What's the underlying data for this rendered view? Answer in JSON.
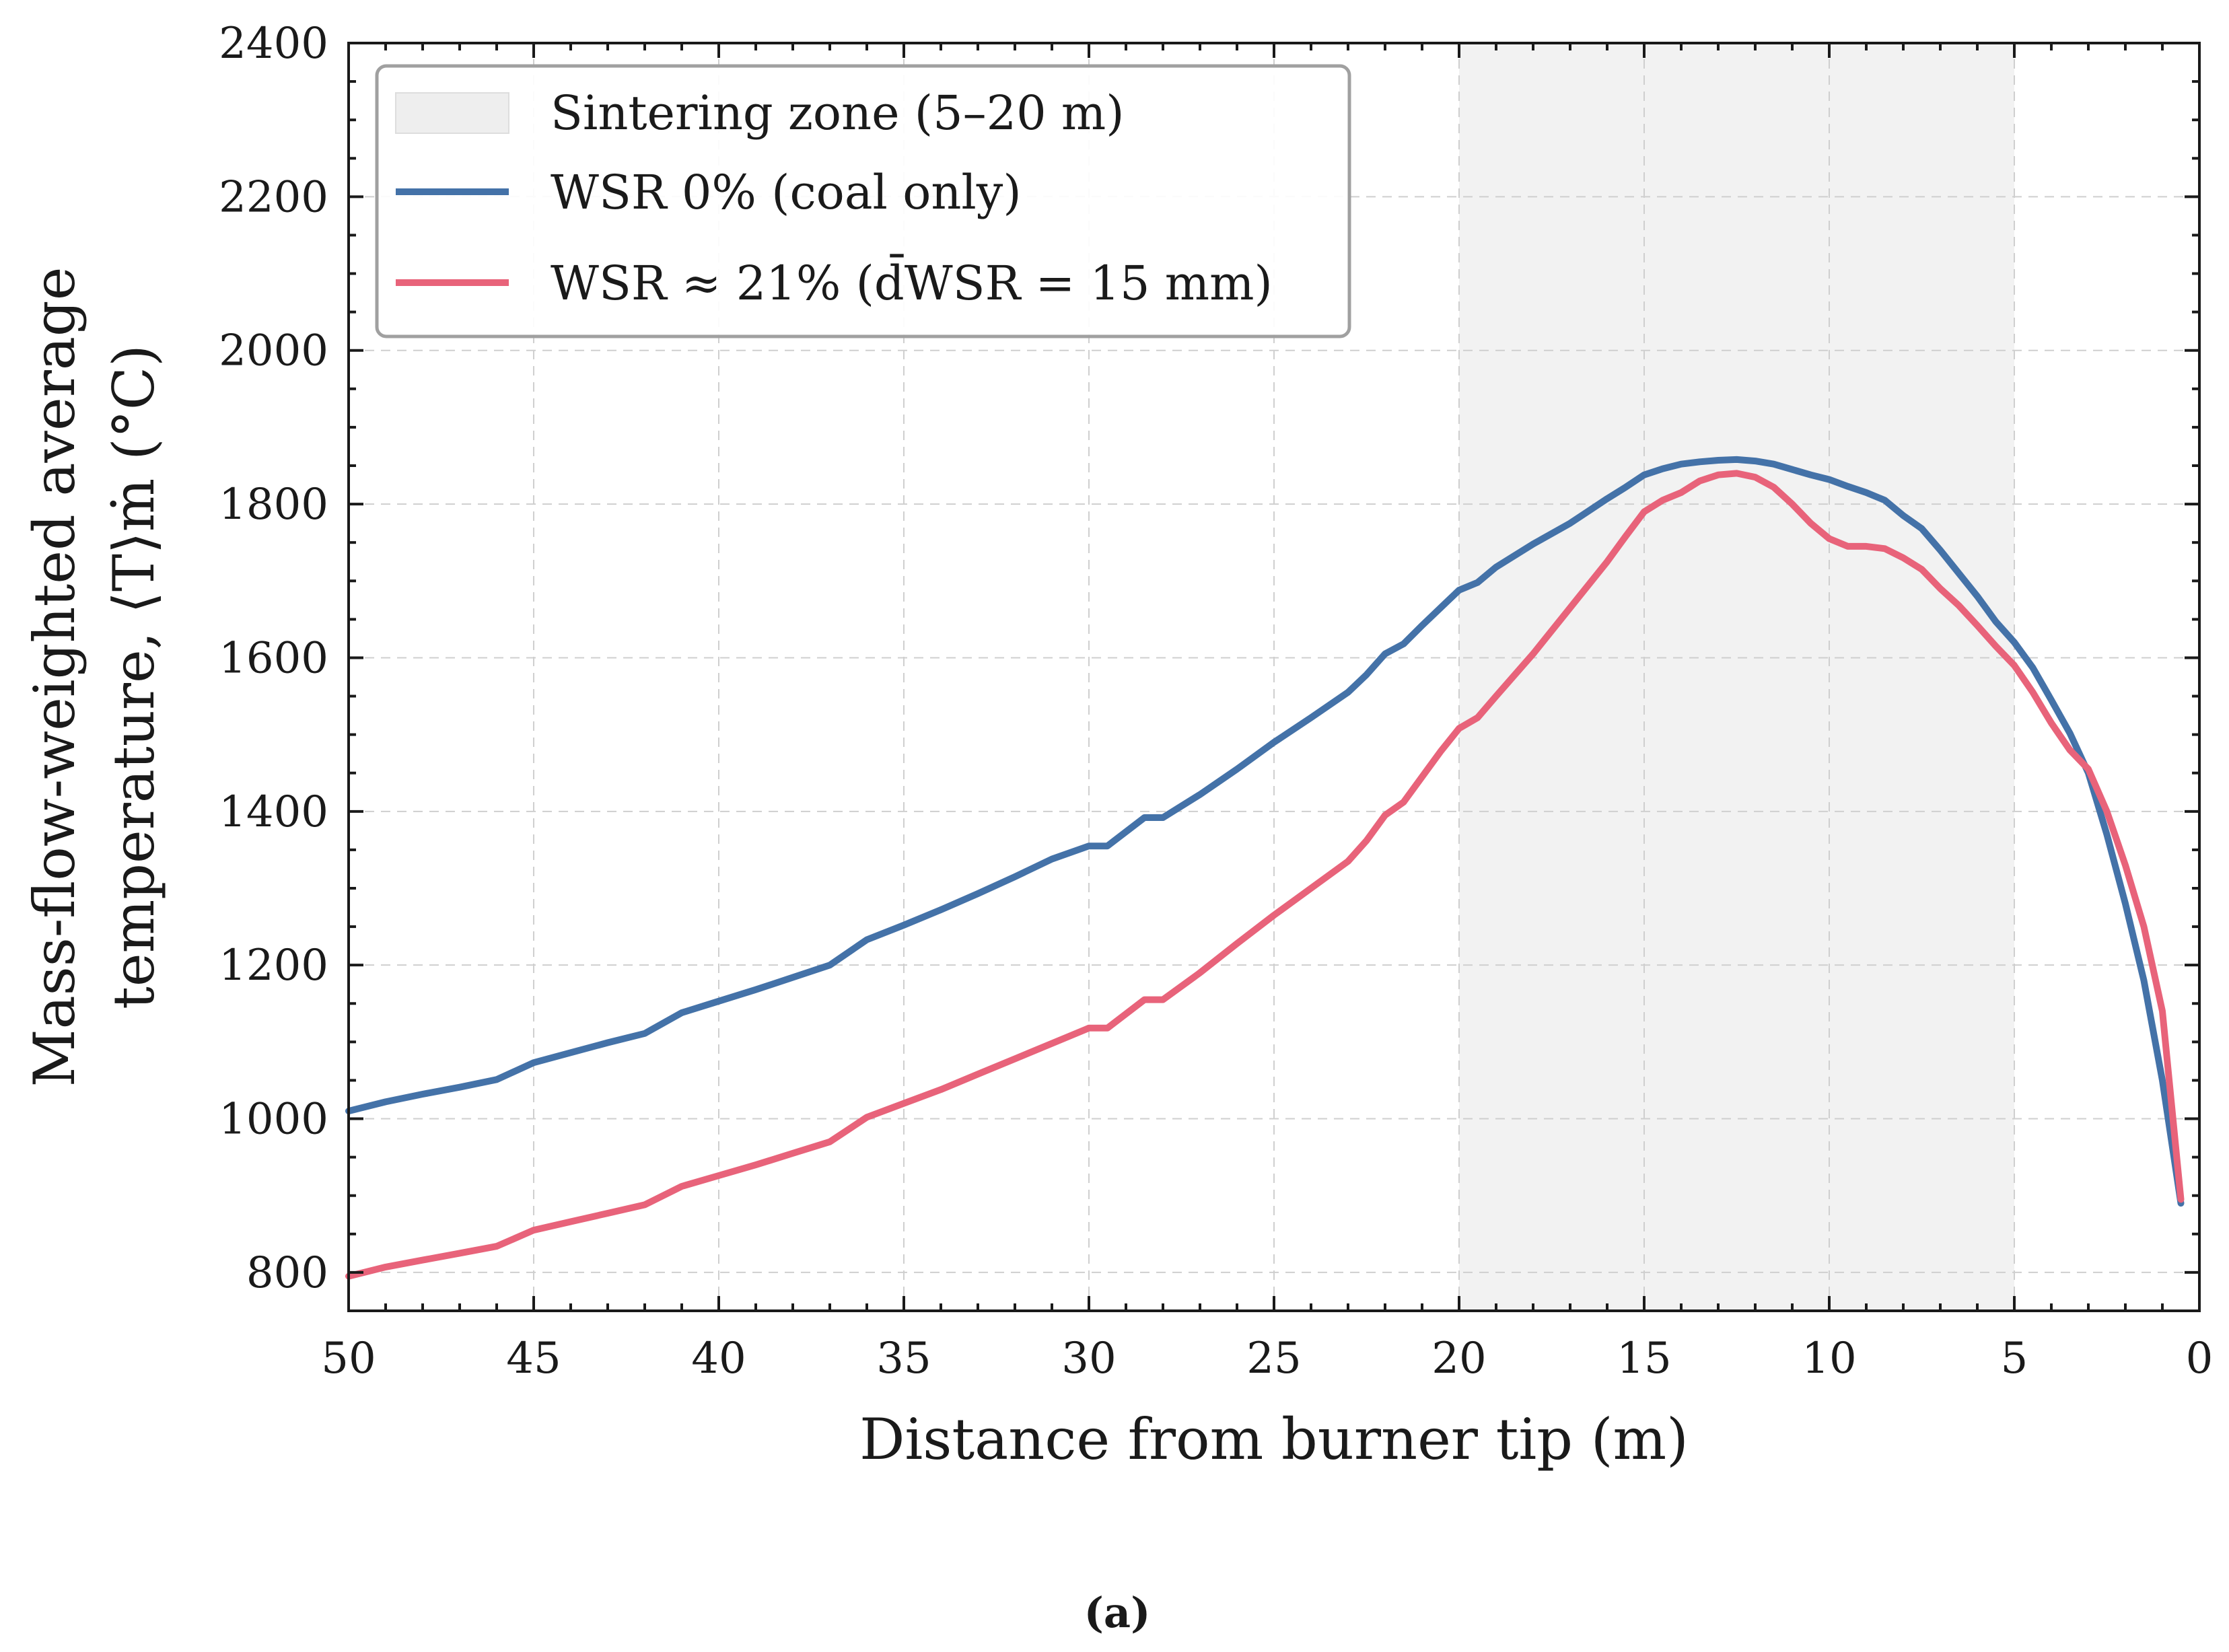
{
  "chart_data": {
    "type": "line",
    "xlabel": "Distance from burner tip (m)",
    "ylabel_line1": "Mass-flow-weighted average",
    "ylabel_line2": "temperature, ⟨T⟩ṁ (°C)",
    "xlim": [
      50,
      0
    ],
    "ylim": [
      750,
      2400
    ],
    "x_ticks": [
      50,
      45,
      40,
      35,
      30,
      25,
      20,
      15,
      10,
      5,
      0
    ],
    "y_ticks": [
      800,
      1000,
      1200,
      1400,
      1600,
      1800,
      2000,
      2200,
      2400
    ],
    "grid": true,
    "legend_position": "top-left",
    "shaded_region": {
      "label": "Sintering zone (5–20 m)",
      "x_range": [
        5,
        20
      ],
      "color": "#f2f2f2"
    },
    "series": [
      {
        "name": "WSR 0% (coal only)",
        "color": "#4472a8",
        "x": [
          50,
          49,
          48,
          47,
          46,
          45,
          44,
          43,
          42,
          41,
          40,
          39,
          38,
          37,
          36,
          35,
          34,
          33,
          32,
          31,
          30,
          29.5,
          28.5,
          28,
          27,
          26,
          25,
          24,
          23,
          22.5,
          22,
          21.5,
          21,
          20.5,
          20,
          19.5,
          19,
          18,
          17,
          16,
          15.5,
          15,
          14.5,
          14,
          13.5,
          13,
          12.5,
          12,
          11.5,
          11,
          10.5,
          10,
          9.5,
          9,
          8.5,
          8,
          7.5,
          7,
          6.5,
          6,
          5.5,
          5,
          4.5,
          4,
          3.5,
          3,
          2.5,
          2,
          1.5,
          1,
          0.5
        ],
        "y": [
          1010,
          1022,
          1032,
          1041,
          1051,
          1073,
          1086,
          1099,
          1111,
          1138,
          1153,
          1168,
          1184,
          1200,
          1233,
          1252,
          1272,
          1293,
          1315,
          1338,
          1355,
          1355,
          1392,
          1392,
          1422,
          1455,
          1490,
          1522,
          1555,
          1578,
          1605,
          1618,
          1642,
          1665,
          1688,
          1698,
          1718,
          1748,
          1775,
          1807,
          1822,
          1838,
          1846,
          1852,
          1855,
          1857,
          1858,
          1856,
          1852,
          1845,
          1838,
          1832,
          1823,
          1815,
          1805,
          1785,
          1768,
          1740,
          1710,
          1680,
          1647,
          1620,
          1587,
          1545,
          1502,
          1450,
          1370,
          1280,
          1180,
          1050,
          890
        ]
      },
      {
        "name": "WSR ≈ 21% (d̄WSR = 15 mm)",
        "color": "#e8637a",
        "x": [
          50,
          49,
          48,
          47,
          46,
          45,
          44,
          43,
          42,
          41,
          40,
          39,
          38,
          37,
          36,
          35,
          34,
          33,
          32,
          31,
          30,
          29.5,
          28.5,
          28,
          27,
          26,
          25,
          24,
          23,
          22.5,
          22,
          21.5,
          21,
          20.5,
          20,
          19.5,
          19,
          18,
          17,
          16,
          15.5,
          15,
          14.5,
          14,
          13.5,
          13,
          12.5,
          12,
          11.5,
          11,
          10.5,
          10,
          9.5,
          9,
          8.5,
          8,
          7.5,
          7,
          6.5,
          6,
          5.5,
          5,
          4.5,
          4,
          3.5,
          3,
          2.5,
          2,
          1.5,
          1,
          0.5
        ],
        "y": [
          795,
          807,
          816,
          825,
          834,
          855,
          866,
          877,
          888,
          912,
          926,
          940,
          955,
          970,
          1002,
          1020,
          1038,
          1058,
          1078,
          1098,
          1118,
          1118,
          1155,
          1155,
          1190,
          1228,
          1265,
          1300,
          1335,
          1362,
          1395,
          1412,
          1445,
          1478,
          1508,
          1522,
          1550,
          1605,
          1665,
          1725,
          1758,
          1790,
          1805,
          1815,
          1830,
          1838,
          1840,
          1835,
          1822,
          1800,
          1775,
          1755,
          1745,
          1745,
          1742,
          1730,
          1715,
          1690,
          1668,
          1642,
          1615,
          1590,
          1555,
          1515,
          1480,
          1455,
          1400,
          1330,
          1250,
          1140,
          895
        ]
      }
    ],
    "caption": "(a)"
  }
}
